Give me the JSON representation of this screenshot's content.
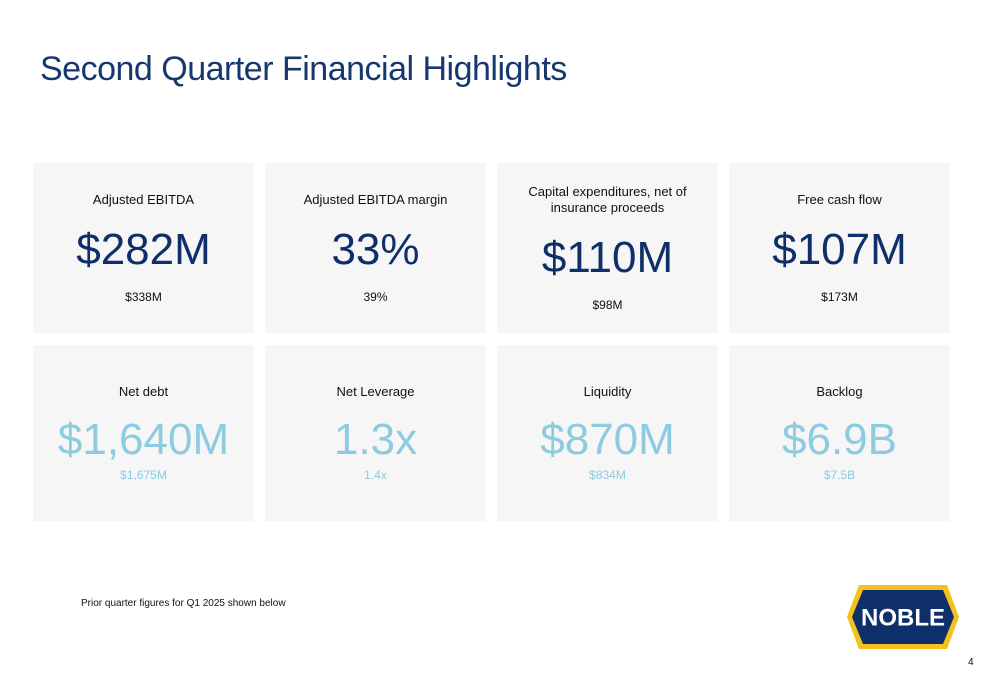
{
  "title": "Second Quarter Financial Highlights",
  "rows": [
    [
      {
        "label": "Adjusted EBITDA",
        "value": "$282M",
        "prior": "$338M"
      },
      {
        "label": "Adjusted EBITDA margin",
        "value": "33%",
        "prior": "39%"
      },
      {
        "label": "Capital expenditures, net of insurance proceeds",
        "value": "$110M",
        "prior": "$98M"
      },
      {
        "label": "Free cash flow",
        "value": "$107M",
        "prior": "$173M"
      }
    ],
    [
      {
        "label": "Net debt",
        "value": "$1,640M",
        "prior": "$1,675M"
      },
      {
        "label": "Net Leverage",
        "value": "1.3x",
        "prior": "1.4x"
      },
      {
        "label": "Liquidity",
        "value": "$870M",
        "prior": "$834M"
      },
      {
        "label": "Backlog",
        "value": "$6.9B",
        "prior": "$7.5B"
      }
    ]
  ],
  "footnote": "Prior quarter figures for Q1 2025 shown below",
  "logo": "NOBLE",
  "page_number": "4"
}
